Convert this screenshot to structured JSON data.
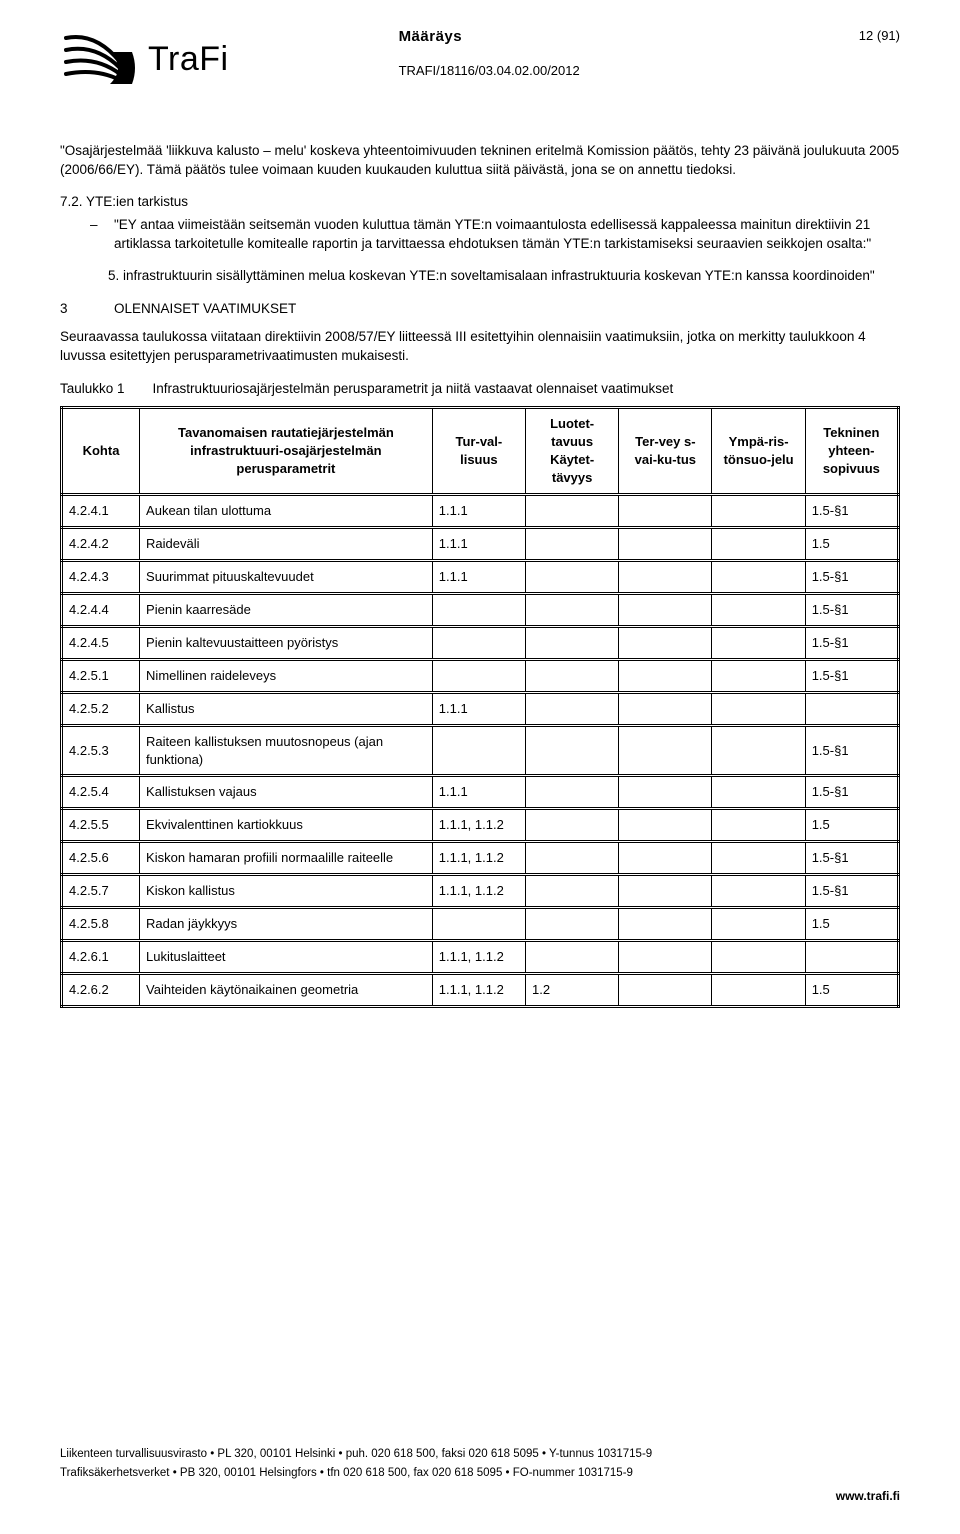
{
  "brand": {
    "name": "TraFi"
  },
  "header": {
    "doc_type": "Määräys",
    "doc_ref": "TRAFI/18116/03.04.02.00/2012",
    "page_num": "12 (91)"
  },
  "body": {
    "para1": "\"Osajärjestelmää 'liikkuva kalusto – melu' koskeva yhteentoimivuuden tekninen eritelmä Komission päätös, tehty 23 päivänä joulukuuta 2005 (2006/66/EY). Tämä päätös tulee voimaan kuuden kuukauden kuluttua siitä päivästä, jona se on annettu tiedoksi.",
    "sect72": "7.2. YTE:ien tarkistus",
    "dash1": "\"EY antaa viimeistään seitsemän vuoden kuluttua tämän YTE:n voimaantulosta edellisessä kappaleessa mainitun direktiivin 21 artiklassa tarkoitetulle komitealle raportin ja tarvittaessa ehdotuksen tämän YTE:n tarkistamiseksi seuraavien seikkojen osalta:\"",
    "item5": "5. infrastruktuurin sisällyttäminen melua koskevan YTE:n soveltamisalaan infrastruktuuria koskevan YTE:n kanssa koordinoiden\"",
    "sec3_num": "3",
    "sec3_title": "OLENNAISET VAATIMUKSET",
    "para2": "Seuraavassa taulukossa viitataan direktiivin 2008/57/EY liitteessä III esitettyihin olennaisiin vaatimuksiin, jotka on merkitty taulukkoon 4 luvussa esitettyjen perusparametrivaatimusten mukaisesti.",
    "tbl_label": "Taulukko 1",
    "tbl_caption": "Infrastruktuuriosajärjestelmän perusparametrit ja niitä vastaavat olennaiset vaatimukset"
  },
  "table": {
    "headers": {
      "kohta": "Kohta",
      "param": "Tavanomaisen rautatiejärjestelmän infrastruktuuri-osajärjestelmän perusparametrit",
      "turv": "Tur-val-lisuus",
      "luot": "Luotet-tavuus Käytet-tävyys",
      "terv": "Ter-vey s-vai-ku-tus",
      "ymp": "Ympä-ris-tönsuo-jelu",
      "tekn": "Tekninen yhteen-sopivuus"
    },
    "rows": [
      {
        "k": "4.2.4.1",
        "p": "Aukean tilan ulottuma",
        "c": [
          "1.1.1",
          "",
          "",
          "",
          "1.5-§1"
        ]
      },
      {
        "k": "4.2.4.2",
        "p": "Raideväli",
        "c": [
          "1.1.1",
          "",
          "",
          "",
          "1.5"
        ]
      },
      {
        "k": "4.2.4.3",
        "p": "Suurimmat pituuskaltevuudet",
        "c": [
          "1.1.1",
          "",
          "",
          "",
          "1.5-§1"
        ]
      },
      {
        "k": "4.2.4.4",
        "p": "Pienin kaarresäde",
        "c": [
          "",
          "",
          "",
          "",
          "1.5-§1"
        ]
      },
      {
        "k": "4.2.4.5",
        "p": "Pienin kaltevuustaitteen pyöristys",
        "c": [
          "",
          "",
          "",
          "",
          "1.5-§1"
        ]
      },
      {
        "k": "4.2.5.1",
        "p": "Nimellinen raideleveys",
        "c": [
          "",
          "",
          "",
          "",
          "1.5-§1"
        ]
      },
      {
        "k": "4.2.5.2",
        "p": "Kallistus",
        "c": [
          "1.1.1",
          "",
          "",
          "",
          ""
        ]
      },
      {
        "k": "4.2.5.3",
        "p": "Raiteen kallistuksen muutosnopeus (ajan funktiona)",
        "c": [
          "",
          "",
          "",
          "",
          "1.5-§1"
        ]
      },
      {
        "k": "4.2.5.4",
        "p": "Kallistuksen vajaus",
        "c": [
          "1.1.1",
          "",
          "",
          "",
          "1.5-§1"
        ]
      },
      {
        "k": "4.2.5.5",
        "p": "Ekvivalenttinen kartiokkuus",
        "c": [
          "1.1.1, 1.1.2",
          "",
          "",
          "",
          "1.5"
        ]
      },
      {
        "k": "4.2.5.6",
        "p": "Kiskon hamaran profiili normaalille raiteelle",
        "c": [
          "1.1.1, 1.1.2",
          "",
          "",
          "",
          "1.5-§1"
        ]
      },
      {
        "k": "4.2.5.7",
        "p": "Kiskon kallistus",
        "c": [
          "1.1.1, 1.1.2",
          "",
          "",
          "",
          "1.5-§1"
        ]
      },
      {
        "k": "4.2.5.8",
        "p": "Radan jäykkyys",
        "c": [
          "",
          "",
          "",
          "",
          "1.5"
        ]
      },
      {
        "k": "4.2.6.1",
        "p": "Lukituslaitteet",
        "c": [
          "1.1.1, 1.1.2",
          "",
          "",
          "",
          ""
        ]
      },
      {
        "k": "4.2.6.2",
        "p": "Vaihteiden käytönaikainen geometria",
        "c": [
          "1.1.1, 1.1.2",
          "1.2",
          "",
          "",
          "1.5"
        ]
      }
    ]
  },
  "footer": {
    "line1": "Liikenteen turvallisuusvirasto • PL 320, 00101 Helsinki • puh. 020 618 500, faksi 020 618 5095 • Y-tunnus 1031715-9",
    "line2": "Trafiksäkerhetsverket • PB 320, 00101 Helsingfors • tfn 020 618 500, fax 020 618 5095 • FO-nummer 1031715-9",
    "site": "www.trafi.fi"
  },
  "colors": {
    "text": "#000000",
    "bg": "#ffffff",
    "logo_stroke": "#000000"
  }
}
